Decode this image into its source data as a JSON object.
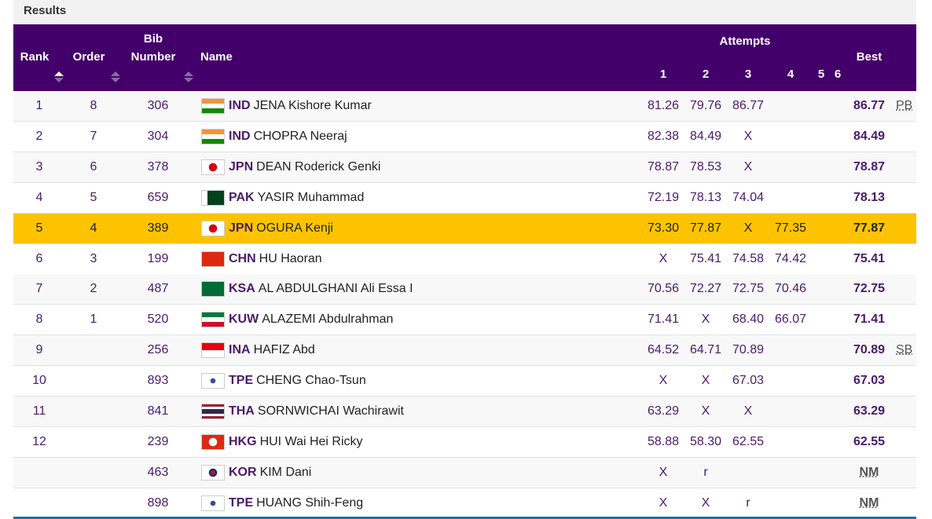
{
  "section_title": "Results",
  "headers": {
    "rank": "Rank",
    "order": "Order",
    "bib_top": "Bib",
    "bib_bottom": "Number",
    "name": "Name",
    "attempts": "Attempts",
    "a1": "1",
    "a2": "2",
    "a3": "3",
    "a4": "4",
    "a5": "5",
    "a6": "6",
    "best": "Best"
  },
  "colors": {
    "header": "#43006a",
    "highlight": "#fdc300",
    "text": "#4b1a6b"
  },
  "rows": [
    {
      "rank": "1",
      "order": "8",
      "bib": "306",
      "noc": "IND",
      "name": "JENA Kishore Kumar",
      "a": [
        "81.26",
        "79.76",
        "86.77",
        "",
        "",
        ""
      ],
      "best": "86.77",
      "mark": "PB"
    },
    {
      "rank": "2",
      "order": "7",
      "bib": "304",
      "noc": "IND",
      "name": "CHOPRA Neeraj",
      "a": [
        "82.38",
        "84.49",
        "X",
        "",
        "",
        ""
      ],
      "best": "84.49",
      "mark": ""
    },
    {
      "rank": "3",
      "order": "6",
      "bib": "378",
      "noc": "JPN",
      "name": "DEAN Roderick Genki",
      "a": [
        "78.87",
        "78.53",
        "X",
        "",
        "",
        ""
      ],
      "best": "78.87",
      "mark": ""
    },
    {
      "rank": "4",
      "order": "5",
      "bib": "659",
      "noc": "PAK",
      "name": "YASIR Muhammad",
      "a": [
        "72.19",
        "78.13",
        "74.04",
        "",
        "",
        ""
      ],
      "best": "78.13",
      "mark": ""
    },
    {
      "rank": "5",
      "order": "4",
      "bib": "389",
      "noc": "JPN",
      "name": "OGURA Kenji",
      "a": [
        "73.30",
        "77.87",
        "X",
        "77.35",
        "",
        ""
      ],
      "best": "77.87",
      "mark": "",
      "highlight": true
    },
    {
      "rank": "6",
      "order": "3",
      "bib": "199",
      "noc": "CHN",
      "name": "HU Haoran",
      "a": [
        "X",
        "75.41",
        "74.58",
        "74.42",
        "",
        ""
      ],
      "best": "75.41",
      "mark": ""
    },
    {
      "rank": "7",
      "order": "2",
      "bib": "487",
      "noc": "KSA",
      "name": "AL ABDULGHANI Ali Essa I",
      "a": [
        "70.56",
        "72.27",
        "72.75",
        "70.46",
        "",
        ""
      ],
      "best": "72.75",
      "mark": ""
    },
    {
      "rank": "8",
      "order": "1",
      "bib": "520",
      "noc": "KUW",
      "name": "ALAZEMI Abdulrahman",
      "a": [
        "71.41",
        "X",
        "68.40",
        "66.07",
        "",
        ""
      ],
      "best": "71.41",
      "mark": ""
    },
    {
      "rank": "9",
      "order": "",
      "bib": "256",
      "noc": "INA",
      "name": "HAFIZ Abd",
      "a": [
        "64.52",
        "64.71",
        "70.89",
        "",
        "",
        ""
      ],
      "best": "70.89",
      "mark": "SB"
    },
    {
      "rank": "10",
      "order": "",
      "bib": "893",
      "noc": "TPE",
      "name": "CHENG Chao-Tsun",
      "a": [
        "X",
        "X",
        "67.03",
        "",
        "",
        ""
      ],
      "best": "67.03",
      "mark": ""
    },
    {
      "rank": "11",
      "order": "",
      "bib": "841",
      "noc": "THA",
      "name": "SORNWICHAI Wachirawit",
      "a": [
        "63.29",
        "X",
        "X",
        "",
        "",
        ""
      ],
      "best": "63.29",
      "mark": ""
    },
    {
      "rank": "12",
      "order": "",
      "bib": "239",
      "noc": "HKG",
      "name": "HUI Wai Hei Ricky",
      "a": [
        "58.88",
        "58.30",
        "62.55",
        "",
        "",
        ""
      ],
      "best": "62.55",
      "mark": ""
    },
    {
      "rank": "",
      "order": "",
      "bib": "463",
      "noc": "KOR",
      "name": "KIM Dani",
      "a": [
        "X",
        "r",
        "",
        "",
        "",
        ""
      ],
      "best": "NM",
      "mark": ""
    },
    {
      "rank": "",
      "order": "",
      "bib": "898",
      "noc": "TPE",
      "name": "HUANG Shih-Feng",
      "a": [
        "X",
        "X",
        "r",
        "",
        "",
        ""
      ],
      "best": "NM",
      "mark": ""
    }
  ]
}
